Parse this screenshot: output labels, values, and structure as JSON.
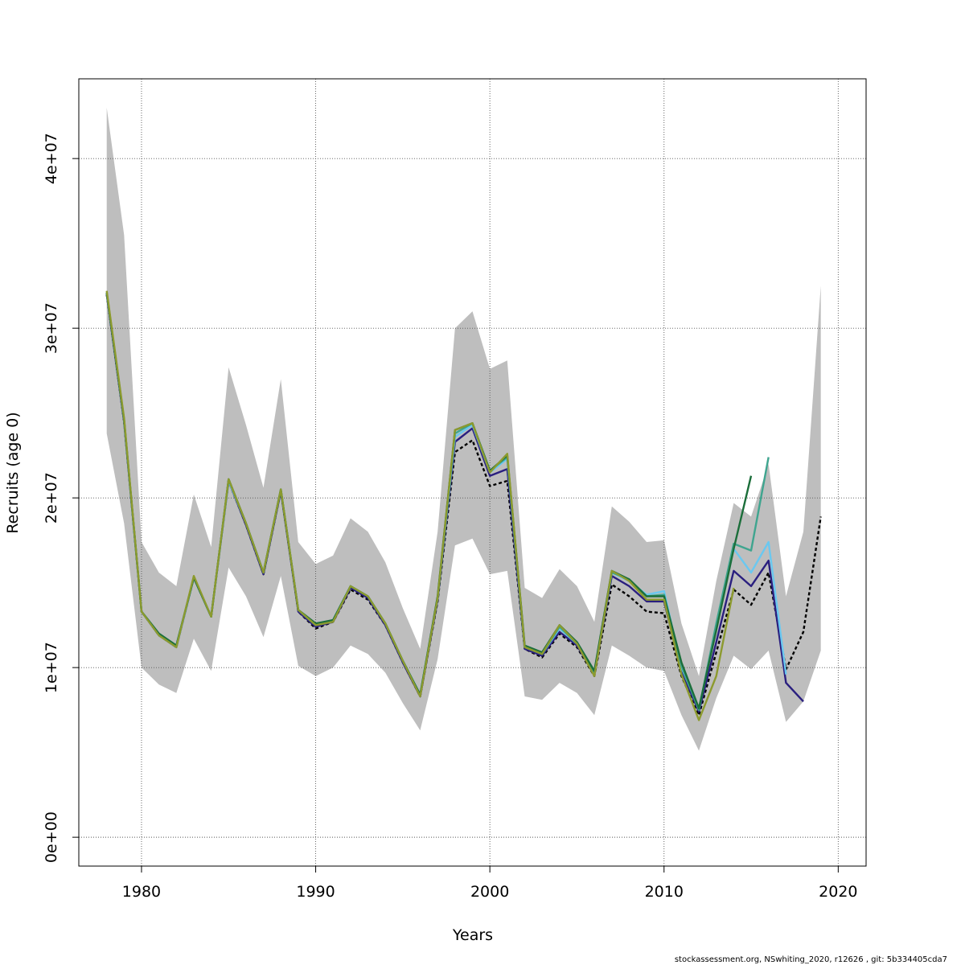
{
  "chart_data": {
    "type": "line",
    "title": "",
    "xlabel": "Years",
    "ylabel": "Recruits (age 0)",
    "xlim": [
      1976.4,
      2021.6
    ],
    "ylim": [
      -1700000,
      44700000
    ],
    "x_ticks": [
      1980,
      1990,
      2000,
      2010,
      2020
    ],
    "y_ticks": [
      0,
      10000000,
      20000000,
      30000000,
      40000000
    ],
    "y_tick_labels": [
      "0e+00",
      "1e+07",
      "2e+07",
      "3e+07",
      "4e+07"
    ],
    "grid": true,
    "confidence_band": {
      "color": "#bebebe",
      "years": [
        1978,
        1979,
        1980,
        1981,
        1982,
        1983,
        1984,
        1985,
        1986,
        1987,
        1988,
        1989,
        1990,
        1991,
        1992,
        1993,
        1994,
        1995,
        1996,
        1997,
        1998,
        1999,
        2000,
        2001,
        2002,
        2003,
        2004,
        2005,
        2006,
        2007,
        2008,
        2009,
        2010,
        2011,
        2012,
        2013,
        2014,
        2015,
        2016,
        2017,
        2018,
        2019
      ],
      "upper": [
        43000000,
        35500000,
        17400000,
        15600000,
        14800000,
        20200000,
        17100000,
        27700000,
        24300000,
        20600000,
        27000000,
        17400000,
        16100000,
        16600000,
        18800000,
        18000000,
        16200000,
        13500000,
        11100000,
        18000000,
        30000000,
        31000000,
        27600000,
        28100000,
        14700000,
        14100000,
        15800000,
        14800000,
        12700000,
        19500000,
        18600000,
        17400000,
        17500000,
        12600000,
        9500000,
        15100000,
        19700000,
        18900000,
        22000000,
        14200000,
        18000000,
        32500000
      ],
      "lower": [
        23800000,
        18500000,
        10000000,
        9000000,
        8500000,
        11700000,
        9800000,
        15900000,
        14200000,
        11800000,
        15400000,
        10100000,
        9500000,
        10000000,
        11300000,
        10800000,
        9700000,
        7900000,
        6300000,
        10500000,
        17200000,
        17600000,
        15500000,
        15700000,
        8300000,
        8100000,
        9100000,
        8500000,
        7200000,
        11300000,
        10700000,
        10000000,
        9800000,
        7200000,
        5100000,
        8200000,
        10700000,
        9900000,
        11000000,
        6800000,
        8000000,
        11000000
      ]
    },
    "series": [
      {
        "color": "#000000",
        "dashed": true,
        "x": [
          1978,
          1979,
          1980,
          1981,
          1982,
          1983,
          1984,
          1985,
          1986,
          1987,
          1988,
          1989,
          1990,
          1991,
          1992,
          1993,
          1994,
          1995,
          1996,
          1997,
          1998,
          1999,
          2000,
          2001,
          2002,
          2003,
          2004,
          2005,
          2006,
          2007,
          2008,
          2009,
          2010,
          2011,
          2012,
          2013,
          2014,
          2015,
          2016,
          2017,
          2018,
          2019
        ],
        "values": [
          32000000,
          24500000,
          13300000,
          11900000,
          11200000,
          15300000,
          13000000,
          21000000,
          18400000,
          15500000,
          20400000,
          13300000,
          12300000,
          12700000,
          14600000,
          14000000,
          12500000,
          10300000,
          8300000,
          13900000,
          22700000,
          23400000,
          20700000,
          21000000,
          11100000,
          10600000,
          12000000,
          11200000,
          9500000,
          14900000,
          14200000,
          13300000,
          13200000,
          9500000,
          7200000,
          10900000,
          14600000,
          13700000,
          15600000,
          9900000,
          12100000,
          18900000
        ]
      },
      {
        "color": "#2a1f7f",
        "x": [
          1978,
          1979,
          1980,
          1981,
          1982,
          1983,
          1984,
          1985,
          1986,
          1987,
          1988,
          1989,
          1990,
          1991,
          1992,
          1993,
          1994,
          1995,
          1996,
          1997,
          1998,
          1999,
          2000,
          2001,
          2002,
          2003,
          2004,
          2005,
          2006,
          2007,
          2008,
          2009,
          2010,
          2011,
          2012,
          2013,
          2014,
          2015,
          2016,
          2017,
          2018
        ],
        "values": [
          32000000,
          24500000,
          13300000,
          11900000,
          11200000,
          15300000,
          13000000,
          21000000,
          18400000,
          15500000,
          20400000,
          13300000,
          12400000,
          12700000,
          14700000,
          14100000,
          12500000,
          10300000,
          8300000,
          14000000,
          23300000,
          24100000,
          21300000,
          21700000,
          11100000,
          10700000,
          12100000,
          11300000,
          9600000,
          15400000,
          14800000,
          13900000,
          13900000,
          9800000,
          7400000,
          11500000,
          15700000,
          14800000,
          16300000,
          9100000,
          8000000
        ]
      },
      {
        "color": "#6ac8f0",
        "x": [
          1978,
          1979,
          1980,
          1981,
          1982,
          1983,
          1984,
          1985,
          1986,
          1987,
          1988,
          1989,
          1990,
          1991,
          1992,
          1993,
          1994,
          1995,
          1996,
          1997,
          1998,
          1999,
          2000,
          2001,
          2002,
          2003,
          2004,
          2005,
          2006,
          2007,
          2008,
          2009,
          2010,
          2011,
          2012,
          2013,
          2014,
          2015,
          2016,
          2017
        ],
        "values": [
          32100000,
          24600000,
          13300000,
          11900000,
          11200000,
          15300000,
          13000000,
          21000000,
          18500000,
          15600000,
          20500000,
          13400000,
          12500000,
          12800000,
          14800000,
          14200000,
          12600000,
          10400000,
          8400000,
          14100000,
          23600000,
          24300000,
          21500000,
          22300000,
          11200000,
          10800000,
          12300000,
          11400000,
          9700000,
          15600000,
          15100000,
          14300000,
          14500000,
          10000000,
          7600000,
          12300000,
          17000000,
          15600000,
          17400000,
          9600000
        ]
      },
      {
        "color": "#3fa58f",
        "x": [
          1978,
          1979,
          1980,
          1981,
          1982,
          1983,
          1984,
          1985,
          1986,
          1987,
          1988,
          1989,
          1990,
          1991,
          1992,
          1993,
          1994,
          1995,
          1996,
          1997,
          1998,
          1999,
          2000,
          2001,
          2002,
          2003,
          2004,
          2005,
          2006,
          2007,
          2008,
          2009,
          2010,
          2011,
          2012,
          2013,
          2014,
          2015,
          2016
        ],
        "values": [
          32100000,
          24600000,
          13300000,
          12000000,
          11300000,
          15300000,
          13000000,
          21100000,
          18500000,
          15600000,
          20500000,
          13400000,
          12500000,
          12800000,
          14800000,
          14200000,
          12600000,
          10400000,
          8400000,
          14100000,
          23800000,
          24400000,
          21600000,
          22400000,
          11200000,
          10800000,
          12400000,
          11400000,
          9700000,
          15600000,
          15200000,
          14200000,
          14300000,
          10100000,
          7500000,
          12600000,
          17300000,
          16900000,
          22400000
        ]
      },
      {
        "color": "#1b6e3a",
        "x": [
          1978,
          1979,
          1980,
          1981,
          1982,
          1983,
          1984,
          1985,
          1986,
          1987,
          1988,
          1989,
          1990,
          1991,
          1992,
          1993,
          1994,
          1995,
          1996,
          1997,
          1998,
          1999,
          2000,
          2001,
          2002,
          2003,
          2004,
          2005,
          2006,
          2007,
          2008,
          2009,
          2010,
          2011,
          2012,
          2013,
          2014,
          2015
        ],
        "values": [
          32100000,
          24600000,
          13300000,
          12000000,
          11300000,
          15300000,
          13000000,
          21100000,
          18500000,
          15600000,
          20500000,
          13400000,
          12600000,
          12800000,
          14800000,
          14200000,
          12600000,
          10400000,
          8400000,
          14200000,
          24000000,
          24400000,
          21600000,
          22500000,
          11300000,
          10900000,
          12500000,
          11500000,
          9800000,
          15700000,
          15200000,
          14200000,
          14200000,
          10300000,
          7600000,
          12200000,
          17000000,
          21300000
        ]
      },
      {
        "color": "#8c9a2e",
        "x": [
          1978,
          1979,
          1980,
          1981,
          1982,
          1983,
          1984,
          1985,
          1986,
          1987,
          1988,
          1989,
          1990,
          1991,
          1992,
          1993,
          1994,
          1995,
          1996,
          1997,
          1998,
          1999,
          2000,
          2001,
          2002,
          2003,
          2004,
          2005,
          2006,
          2007,
          2008,
          2009,
          2010,
          2011,
          2012,
          2013,
          2014
        ],
        "values": [
          32200000,
          24700000,
          13300000,
          11900000,
          11200000,
          15400000,
          13000000,
          21100000,
          18500000,
          15600000,
          20500000,
          13400000,
          12500000,
          12700000,
          14800000,
          14200000,
          12600000,
          10400000,
          8300000,
          14100000,
          24000000,
          24400000,
          21500000,
          22600000,
          11200000,
          10800000,
          12500000,
          11400000,
          9500000,
          15700000,
          15100000,
          14000000,
          14000000,
          9600000,
          6900000,
          9500000,
          14700000
        ]
      }
    ]
  },
  "footer": "stockassessment.org, NSwhiting_2020, r12626 , git: 5b334405cda7"
}
